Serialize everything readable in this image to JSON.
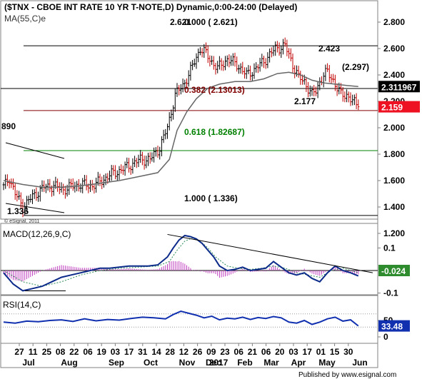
{
  "header": {
    "title": "($TNX - CBOE INT RATE 10 YR T-NOTE,D) Dynamic,0:00-24:00 (Delayed)",
    "ma_label": "MA(55,C)e",
    "copyright": "© eSignal, 2011"
  },
  "footer": {
    "published_by": "Published by www.esignal.com"
  },
  "chart_data": [
    {
      "type": "line",
      "title": "($TNX - CBOE INT RATE 10 YR T-NOTE,D) Dynamic,0:00-24:00 (Delayed)",
      "subtype": "daily price bars with moving average",
      "y_ticks": [
        "2.800",
        "2.600",
        "2.400",
        "2.200",
        "2.000",
        "1.800",
        "1.600",
        "1.400",
        "1.200"
      ],
      "ylim": [
        1.2,
        2.8
      ],
      "series": [
        {
          "name": "$TNX",
          "x": [
            0,
            3,
            6,
            10,
            15,
            21,
            26,
            31,
            36,
            41,
            46,
            51,
            56,
            61,
            66,
            71,
            76,
            81,
            85,
            89,
            93,
            96,
            99,
            102,
            105,
            108,
            111,
            116,
            121,
            126,
            131,
            136,
            141,
            146,
            150,
            153,
            156,
            158,
            160,
            162,
            164,
            166,
            168,
            171,
            173,
            175,
            178,
            181,
            184
          ],
          "values": [
            1.55,
            1.62,
            1.5,
            1.4,
            1.48,
            1.55,
            1.56,
            1.53,
            1.56,
            1.57,
            1.56,
            1.6,
            1.65,
            1.68,
            1.72,
            1.76,
            1.76,
            1.85,
            2.0,
            2.25,
            2.32,
            2.4,
            2.5,
            2.6,
            2.56,
            2.5,
            2.45,
            2.52,
            2.48,
            2.4,
            2.45,
            2.52,
            2.6,
            2.62,
            2.48,
            2.38,
            2.35,
            2.3,
            2.25,
            2.28,
            2.35,
            2.4,
            2.42,
            2.36,
            2.3,
            2.25,
            2.25,
            2.2,
            2.159
          ]
        },
        {
          "name": "MA(55,C)e",
          "x": [
            0,
            10,
            20,
            30,
            40,
            50,
            60,
            70,
            80,
            86,
            90,
            95,
            100,
            106,
            112,
            120,
            128,
            135,
            142,
            148,
            154,
            160,
            166,
            172,
            178,
            184
          ],
          "values": [
            1.6,
            1.57,
            1.55,
            1.55,
            1.56,
            1.58,
            1.6,
            1.63,
            1.66,
            1.76,
            1.98,
            2.12,
            2.22,
            2.3,
            2.33,
            2.35,
            2.35,
            2.37,
            2.41,
            2.42,
            2.4,
            2.36,
            2.34,
            2.33,
            2.32,
            2.311967
          ]
        }
      ],
      "highlight_values": [
        {
          "label": "2.311967",
          "value": 2.311967,
          "color": "#000000"
        },
        {
          "label": "2.159",
          "value": 2.159,
          "color": "#ee1122"
        }
      ],
      "annotations": [
        {
          "text": "2.621",
          "kind": "peak"
        },
        {
          "text": "0.000 ( 2.621)",
          "level": 2.621,
          "color": "#000000"
        },
        {
          "text": "2.423",
          "kind": "peak"
        },
        {
          "text": "(2.297)",
          "level": 2.297,
          "color": "#000000"
        },
        {
          "text": "0.382 (2.13013)",
          "level": 2.13013,
          "color": "#800000"
        },
        {
          "text": "2.177",
          "kind": "low"
        },
        {
          "text": "0.618 (1.82687)",
          "level": 1.82687,
          "color": "#008000"
        },
        {
          "text": "1.000 ( 1.336)",
          "level": 1.336,
          "color": "#000000"
        },
        {
          "text": "1.336",
          "kind": "low"
        },
        {
          "text": "890",
          "kind": "cut-off label"
        }
      ]
    },
    {
      "type": "line",
      "title": "MACD(12,26,9,C)",
      "y_ticks": [
        "0.1",
        "-0.1"
      ],
      "ylim": [
        -0.12,
        0.18
      ],
      "last_value_label": "-0.024",
      "series": [
        {
          "name": "MACD",
          "x": [
            0,
            5,
            10,
            15,
            20,
            25,
            30,
            35,
            40,
            45,
            50,
            55,
            60,
            65,
            70,
            75,
            80,
            85,
            88,
            91,
            94,
            97,
            100,
            103,
            106,
            109,
            112,
            116,
            120,
            124,
            128,
            132,
            136,
            140,
            144,
            148,
            152,
            156,
            160,
            164,
            168,
            172,
            176,
            180,
            184
          ],
          "values": [
            -0.01,
            -0.06,
            -0.09,
            -0.08,
            -0.07,
            -0.05,
            -0.03,
            -0.02,
            -0.01,
            0,
            0.01,
            0.01,
            0.015,
            0.02,
            0.02,
            0.02,
            0.025,
            0.06,
            0.1,
            0.135,
            0.155,
            0.15,
            0.14,
            0.12,
            0.09,
            0.06,
            0.02,
            0,
            0.005,
            0.015,
            0.0,
            0.005,
            0.01,
            0.04,
            0.015,
            -0.01,
            -0.02,
            -0.01,
            -0.035,
            -0.05,
            -0.01,
            0.02,
            0.0,
            -0.01,
            -0.024
          ]
        },
        {
          "name": "Signal",
          "x": [
            0,
            10,
            20,
            30,
            40,
            50,
            60,
            70,
            80,
            86,
            90,
            94,
            98,
            102,
            106,
            110,
            116,
            122,
            128,
            134,
            140,
            146,
            152,
            158,
            164,
            170,
            176,
            184
          ],
          "values": [
            0.0,
            -0.05,
            -0.07,
            -0.05,
            -0.02,
            0.0,
            0.01,
            0.015,
            0.02,
            0.04,
            0.09,
            0.13,
            0.145,
            0.13,
            0.1,
            0.06,
            0.02,
            0.01,
            0.005,
            0.01,
            0.02,
            0.01,
            -0.01,
            -0.02,
            -0.03,
            0.0,
            0.01,
            -0.01
          ]
        }
      ]
    },
    {
      "type": "line",
      "title": "RSI(14,C)",
      "y_ticks": [
        "50",
        "0"
      ],
      "ylim": [
        0,
        100
      ],
      "last_value_label": "33.48",
      "series": [
        {
          "name": "RSI",
          "x": [
            0,
            6,
            12,
            18,
            24,
            30,
            36,
            42,
            48,
            54,
            60,
            66,
            72,
            78,
            84,
            88,
            92,
            96,
            100,
            104,
            108,
            112,
            116,
            120,
            124,
            128,
            132,
            136,
            140,
            144,
            148,
            152,
            156,
            160,
            164,
            168,
            172,
            176,
            180,
            184
          ],
          "values": [
            45,
            42,
            48,
            46,
            50,
            52,
            47,
            55,
            49,
            53,
            51,
            56,
            60,
            58,
            55,
            68,
            78,
            72,
            66,
            58,
            63,
            52,
            57,
            55,
            60,
            53,
            59,
            56,
            62,
            58,
            45,
            42,
            50,
            38,
            45,
            55,
            60,
            48,
            52,
            33.48
          ]
        }
      ]
    }
  ],
  "x_axis": {
    "day_labels": [
      "27",
      "11",
      "25",
      "08",
      "22",
      "06",
      "19",
      "03",
      "17",
      "31",
      "14",
      "28",
      "12",
      "26",
      "09",
      "23",
      "06",
      "21",
      "06",
      "20",
      "03",
      "17",
      "01",
      "15",
      "30"
    ],
    "month_labels": [
      "Jul",
      "Aug",
      "Sep",
      "Oct",
      "Nov",
      "Dec",
      "2017",
      "Feb",
      "Mar",
      "Apr",
      "May",
      "Jun"
    ]
  }
}
